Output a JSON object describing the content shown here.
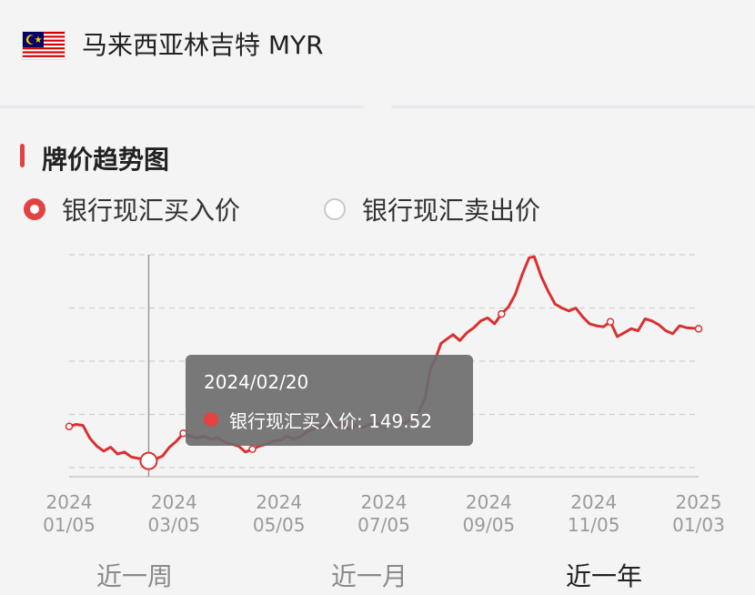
{
  "header": {
    "currency_name": "马来西亚林吉特 MYR",
    "flag_icon": "malaysia-flag-icon"
  },
  "section": {
    "title": "牌价趋势图"
  },
  "series_selector": {
    "options": [
      {
        "label": "银行现汇买入价",
        "selected": true
      },
      {
        "label": "银行现汇卖出价",
        "selected": false
      }
    ]
  },
  "tooltip": {
    "date": "2024/02/20",
    "series_label": "银行现汇买入价",
    "value": "149.52",
    "text": "银行现汇买入价: 149.52"
  },
  "range_tabs": {
    "tabs": [
      {
        "label": "近一周",
        "active": false
      },
      {
        "label": "近一月",
        "active": false
      },
      {
        "label": "近一年",
        "active": true
      }
    ]
  },
  "colors": {
    "line": "#d93030",
    "accent": "#e34242",
    "grid": "#cfcfcf",
    "cursor": "#9a9a9a"
  },
  "chart_data": {
    "type": "line",
    "title": "",
    "xlabel": "",
    "ylabel": "",
    "ylim": [
      149.2,
      153.7
    ],
    "x_ticks": [
      {
        "year": "2024",
        "date": "01/05"
      },
      {
        "year": "2024",
        "date": "03/05"
      },
      {
        "year": "2024",
        "date": "05/05"
      },
      {
        "year": "2024",
        "date": "07/05"
      },
      {
        "year": "2024",
        "date": "09/05"
      },
      {
        "year": "2024",
        "date": "11/05"
      },
      {
        "year": "2025",
        "date": "01/03"
      }
    ],
    "grid": true,
    "cursor_date": "2024-02-20",
    "series": [
      {
        "values": [
          [
            "2024-01-05",
            150.22
          ],
          [
            "2024-01-09",
            150.26
          ],
          [
            "2024-01-13",
            150.24
          ],
          [
            "2024-01-17",
            149.98
          ],
          [
            "2024-01-21",
            149.82
          ],
          [
            "2024-01-25",
            149.72
          ],
          [
            "2024-01-29",
            149.8
          ],
          [
            "2024-02-02",
            149.66
          ],
          [
            "2024-02-06",
            149.7
          ],
          [
            "2024-02-10",
            149.6
          ],
          [
            "2024-02-14",
            149.57
          ],
          [
            "2024-02-18",
            149.55
          ],
          [
            "2024-02-20",
            149.52
          ],
          [
            "2024-02-24",
            149.56
          ],
          [
            "2024-02-28",
            149.62
          ],
          [
            "2024-03-03",
            149.8
          ],
          [
            "2024-03-07",
            149.92
          ],
          [
            "2024-03-11",
            150.08
          ],
          [
            "2024-03-15",
            150.02
          ],
          [
            "2024-03-19",
            149.98
          ],
          [
            "2024-03-23",
            150.02
          ],
          [
            "2024-03-27",
            149.96
          ],
          [
            "2024-03-31",
            149.99
          ],
          [
            "2024-04-04",
            149.9
          ],
          [
            "2024-04-08",
            149.86
          ],
          [
            "2024-04-12",
            149.82
          ],
          [
            "2024-04-16",
            149.7
          ],
          [
            "2024-04-20",
            149.76
          ],
          [
            "2024-04-24",
            149.82
          ],
          [
            "2024-04-28",
            149.86
          ],
          [
            "2024-05-02",
            149.92
          ],
          [
            "2024-05-06",
            149.94
          ],
          [
            "2024-05-10",
            150.02
          ],
          [
            "2024-05-14",
            149.96
          ],
          [
            "2024-05-18",
            150.02
          ],
          [
            "2024-05-22",
            150.12
          ],
          [
            "2024-05-26",
            150.18
          ],
          [
            "2024-05-30",
            150.24
          ],
          [
            "2024-06-03",
            150.26
          ],
          [
            "2024-06-07",
            150.22
          ],
          [
            "2024-06-11",
            150.3
          ],
          [
            "2024-06-15",
            150.16
          ],
          [
            "2024-06-19",
            150.24
          ],
          [
            "2024-06-23",
            150.2
          ],
          [
            "2024-06-27",
            150.26
          ],
          [
            "2024-07-01",
            150.28
          ],
          [
            "2024-07-05",
            150.24
          ],
          [
            "2024-07-09",
            150.3
          ],
          [
            "2024-07-13",
            150.34
          ],
          [
            "2024-07-17",
            150.28
          ],
          [
            "2024-07-21",
            150.38
          ],
          [
            "2024-07-25",
            150.5
          ],
          [
            "2024-07-29",
            150.8
          ],
          [
            "2024-08-01",
            151.4
          ],
          [
            "2024-08-04",
            151.6
          ],
          [
            "2024-08-07",
            151.9
          ],
          [
            "2024-08-10",
            151.98
          ],
          [
            "2024-08-14",
            152.08
          ],
          [
            "2024-08-18",
            151.96
          ],
          [
            "2024-08-22",
            152.12
          ],
          [
            "2024-08-26",
            152.22
          ],
          [
            "2024-08-30",
            152.36
          ],
          [
            "2024-09-03",
            152.42
          ],
          [
            "2024-09-07",
            152.3
          ],
          [
            "2024-09-11",
            152.5
          ],
          [
            "2024-09-15",
            152.64
          ],
          [
            "2024-09-19",
            152.9
          ],
          [
            "2024-09-23",
            153.3
          ],
          [
            "2024-09-27",
            153.64
          ],
          [
            "2024-09-30",
            153.66
          ],
          [
            "2024-10-04",
            153.26
          ],
          [
            "2024-10-08",
            152.96
          ],
          [
            "2024-10-12",
            152.7
          ],
          [
            "2024-10-16",
            152.62
          ],
          [
            "2024-10-20",
            152.56
          ],
          [
            "2024-10-24",
            152.62
          ],
          [
            "2024-10-28",
            152.44
          ],
          [
            "2024-11-01",
            152.3
          ],
          [
            "2024-11-05",
            152.26
          ],
          [
            "2024-11-09",
            152.24
          ],
          [
            "2024-11-13",
            152.34
          ],
          [
            "2024-11-17",
            152.04
          ],
          [
            "2024-11-21",
            152.12
          ],
          [
            "2024-11-25",
            152.2
          ],
          [
            "2024-11-29",
            152.16
          ],
          [
            "2024-12-03",
            152.4
          ],
          [
            "2024-12-07",
            152.36
          ],
          [
            "2024-12-11",
            152.28
          ],
          [
            "2024-12-15",
            152.16
          ],
          [
            "2024-12-19",
            152.1
          ],
          [
            "2024-12-23",
            152.26
          ],
          [
            "2024-12-27",
            152.22
          ],
          [
            "2025-01-03",
            152.2
          ]
        ]
      }
    ]
  }
}
